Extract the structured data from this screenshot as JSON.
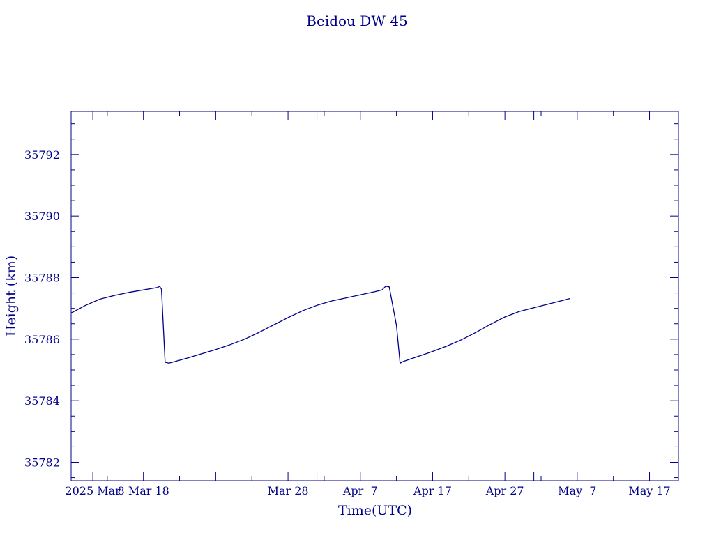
{
  "chart_data": {
    "type": "line",
    "title": "Beidou DW 45",
    "xlabel": "Time(UTC)",
    "ylabel": "Height (km)",
    "color": "#00008b",
    "grid": false,
    "legend": "none",
    "xlim": [
      "2025-02-26",
      "2025-05-21"
    ],
    "ylim": [
      35781.4,
      35793.4
    ],
    "y_ticks": [
      35782,
      35784,
      35786,
      35788,
      35790,
      35792
    ],
    "x_ticks": [
      {
        "date": "2025-03-01",
        "label": "2025 Mar"
      },
      {
        "date": "2025-03-08",
        "label": "8 Mar 18"
      },
      {
        "date": "2025-03-28",
        "label": "Mar 28"
      },
      {
        "date": "2025-04-07",
        "label": "Apr  7"
      },
      {
        "date": "2025-04-17",
        "label": "Apr 17"
      },
      {
        "date": "2025-04-27",
        "label": "Apr 27"
      },
      {
        "date": "2025-05-07",
        "label": "May  7"
      },
      {
        "date": "2025-05-17",
        "label": "May 17"
      }
    ],
    "series": [
      {
        "values": [
          {
            "x": "2025-02-26",
            "y": 35786.85
          },
          {
            "x": "2025-02-28",
            "y": 35787.1
          },
          {
            "x": "2025-03-02",
            "y": 35787.3
          },
          {
            "x": "2025-03-04",
            "y": 35787.42
          },
          {
            "x": "2025-03-06",
            "y": 35787.52
          },
          {
            "x": "2025-03-08",
            "y": 35787.6
          },
          {
            "x": "2025-03-10",
            "y": 35787.68
          },
          {
            "x": "2025-03-10T06:00",
            "y": 35787.72
          },
          {
            "x": "2025-03-10T12:00",
            "y": 35787.62
          },
          {
            "x": "2025-03-11",
            "y": 35785.25
          },
          {
            "x": "2025-03-11T12:00",
            "y": 35785.22
          },
          {
            "x": "2025-03-12",
            "y": 35785.25
          },
          {
            "x": "2025-03-14",
            "y": 35785.38
          },
          {
            "x": "2025-03-16",
            "y": 35785.52
          },
          {
            "x": "2025-03-18",
            "y": 35785.66
          },
          {
            "x": "2025-03-20",
            "y": 35785.82
          },
          {
            "x": "2025-03-22",
            "y": 35786.0
          },
          {
            "x": "2025-03-24",
            "y": 35786.22
          },
          {
            "x": "2025-03-26",
            "y": 35786.46
          },
          {
            "x": "2025-03-28",
            "y": 35786.7
          },
          {
            "x": "2025-03-30",
            "y": 35786.92
          },
          {
            "x": "2025-04-01",
            "y": 35787.1
          },
          {
            "x": "2025-04-03",
            "y": 35787.24
          },
          {
            "x": "2025-04-05",
            "y": 35787.34
          },
          {
            "x": "2025-04-07",
            "y": 35787.44
          },
          {
            "x": "2025-04-09",
            "y": 35787.54
          },
          {
            "x": "2025-04-10",
            "y": 35787.6
          },
          {
            "x": "2025-04-10T12:00",
            "y": 35787.72
          },
          {
            "x": "2025-04-11",
            "y": 35787.7
          },
          {
            "x": "2025-04-12",
            "y": 35786.45
          },
          {
            "x": "2025-04-12T12:00",
            "y": 35785.22
          },
          {
            "x": "2025-04-13",
            "y": 35785.28
          },
          {
            "x": "2025-04-15",
            "y": 35785.44
          },
          {
            "x": "2025-04-17",
            "y": 35785.6
          },
          {
            "x": "2025-04-19",
            "y": 35785.78
          },
          {
            "x": "2025-04-21",
            "y": 35785.98
          },
          {
            "x": "2025-04-23",
            "y": 35786.22
          },
          {
            "x": "2025-04-25",
            "y": 35786.48
          },
          {
            "x": "2025-04-27",
            "y": 35786.72
          },
          {
            "x": "2025-04-29",
            "y": 35786.9
          },
          {
            "x": "2025-05-01",
            "y": 35787.02
          },
          {
            "x": "2025-05-03",
            "y": 35787.14
          },
          {
            "x": "2025-05-05",
            "y": 35787.26
          },
          {
            "x": "2025-05-06",
            "y": 35787.32
          }
        ]
      }
    ]
  }
}
